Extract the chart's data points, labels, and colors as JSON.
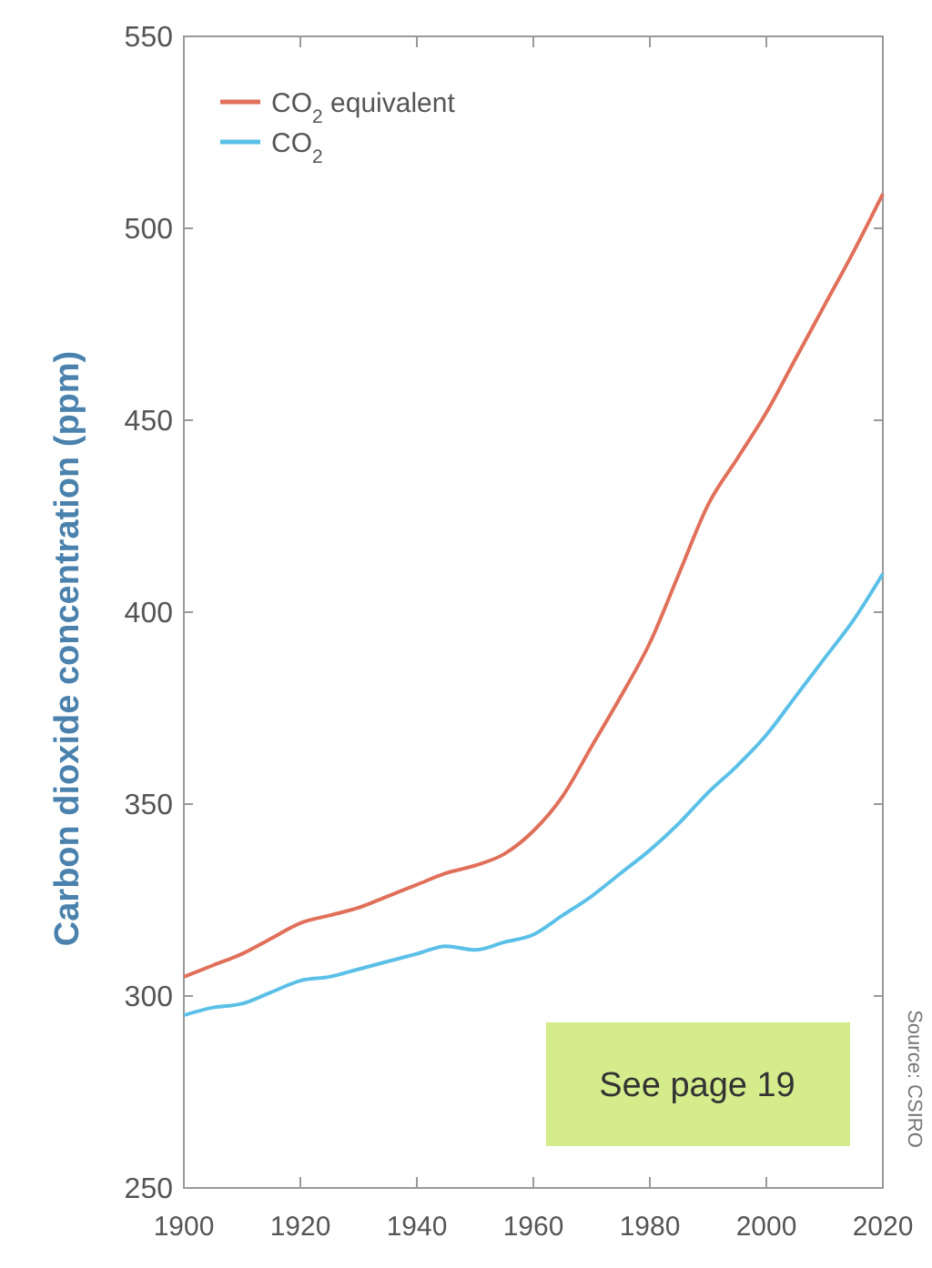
{
  "chart_data": {
    "type": "line",
    "ylabel": "Carbon dioxide concentration (ppm)",
    "xlim": [
      1900,
      2020
    ],
    "xticks": [
      1900,
      1920,
      1940,
      1960,
      1980,
      2000,
      2020
    ],
    "ylim": [
      250,
      550
    ],
    "yticks": [
      250,
      300,
      350,
      400,
      450,
      500,
      550
    ],
    "grid": false,
    "legend": "top left",
    "x": [
      1900,
      1905,
      1910,
      1915,
      1920,
      1925,
      1930,
      1935,
      1940,
      1945,
      1950,
      1955,
      1960,
      1965,
      1970,
      1975,
      1980,
      1985,
      1990,
      1995,
      2000,
      2005,
      2010,
      2015,
      2020
    ],
    "series": [
      {
        "name": "CO$_{2}$ equivalent",
        "color": "#e0705a",
        "values": [
          305,
          308,
          311,
          315,
          319,
          321,
          323,
          326,
          329,
          332,
          334,
          337,
          343,
          352,
          365,
          378,
          392,
          410,
          428,
          440,
          452,
          466,
          480,
          494,
          509
        ]
      },
      {
        "name": "CO$_{2}$",
        "color": "#5bc0e8",
        "values": [
          295,
          297,
          298,
          301,
          304,
          305,
          307,
          309,
          311,
          313,
          312,
          314,
          316,
          321,
          326,
          332,
          338,
          345,
          353,
          360,
          368,
          378,
          388,
          398,
          410
        ]
      }
    ],
    "annotations": [
      "See page 19",
      "Source: CSIRO"
    ]
  }
}
